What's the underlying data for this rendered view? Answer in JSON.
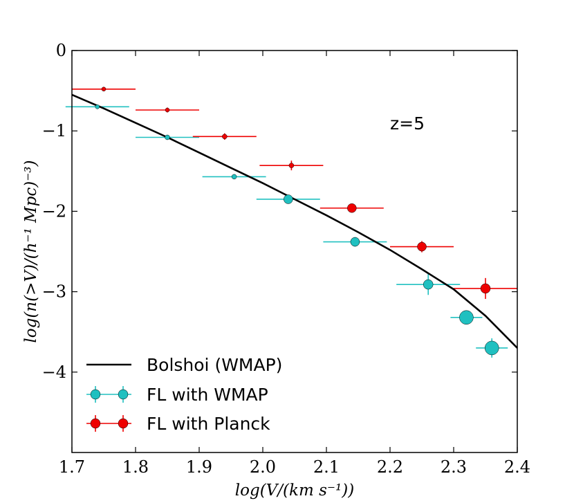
{
  "chart_data": {
    "type": "scatter",
    "title": "",
    "annotation": "z=5",
    "xlabel": "log(V/(km s⁻¹))",
    "ylabel": "log(n(>V)/(h⁻¹ Mpc)⁻³)",
    "xlim": [
      1.7,
      2.4
    ],
    "ylim": [
      -5,
      0
    ],
    "xticks": [
      {
        "value": 1.7,
        "label": "1.7"
      },
      {
        "value": 1.8,
        "label": "1.8"
      },
      {
        "value": 1.9,
        "label": "1.9"
      },
      {
        "value": 2.0,
        "label": "2.0"
      },
      {
        "value": 2.1,
        "label": "2.1"
      },
      {
        "value": 2.2,
        "label": "2.2"
      },
      {
        "value": 2.3,
        "label": "2.3"
      },
      {
        "value": 2.4,
        "label": "2.4"
      }
    ],
    "yticks": [
      {
        "value": 0,
        "label": "0"
      },
      {
        "value": -1,
        "label": "−1"
      },
      {
        "value": -2,
        "label": "−2"
      },
      {
        "value": -3,
        "label": "−3"
      },
      {
        "value": -4,
        "label": "−4"
      }
    ],
    "series": [
      {
        "name": "Bolshoi (WMAP)",
        "kind": "line",
        "color": "#000000",
        "x": [
          1.7,
          1.75,
          1.8,
          1.85,
          1.9,
          1.95,
          2.0,
          2.05,
          2.1,
          2.15,
          2.2,
          2.25,
          2.3,
          2.35,
          2.4
        ],
        "y": [
          -0.55,
          -0.72,
          -0.9,
          -1.08,
          -1.27,
          -1.46,
          -1.65,
          -1.85,
          -2.05,
          -2.26,
          -2.48,
          -2.72,
          -2.97,
          -3.3,
          -3.7
        ]
      },
      {
        "name": "FL with WMAP",
        "kind": "errorbar",
        "color": "#20c0c0",
        "points": [
          {
            "x": 1.74,
            "y": -0.7,
            "xerr": 0.05,
            "yerr": 0.02,
            "size": 3
          },
          {
            "x": 1.85,
            "y": -1.08,
            "xerr": 0.05,
            "yerr": 0.03,
            "size": 3.5
          },
          {
            "x": 1.955,
            "y": -1.57,
            "xerr": 0.05,
            "yerr": 0.03,
            "size": 3.5
          },
          {
            "x": 2.04,
            "y": -1.85,
            "xerr": 0.05,
            "yerr": 0.04,
            "size": 6.5
          },
          {
            "x": 2.145,
            "y": -2.38,
            "xerr": 0.05,
            "yerr": 0.06,
            "size": 6.5
          },
          {
            "x": 2.26,
            "y": -2.91,
            "xerr": 0.05,
            "yerr": 0.13,
            "size": 7
          },
          {
            "x": 2.32,
            "y": -3.32,
            "xerr": 0.025,
            "yerr": 0.06,
            "size": 10
          },
          {
            "x": 2.36,
            "y": -3.7,
            "xerr": 0.025,
            "yerr": 0.12,
            "size": 10
          }
        ]
      },
      {
        "name": "FL with Planck",
        "kind": "errorbar",
        "color": "#ee0000",
        "points": [
          {
            "x": 1.75,
            "y": -0.48,
            "xerr": 0.05,
            "yerr": 0.02,
            "size": 3
          },
          {
            "x": 1.85,
            "y": -0.74,
            "xerr": 0.05,
            "yerr": 0.03,
            "size": 3
          },
          {
            "x": 1.94,
            "y": -1.07,
            "xerr": 0.05,
            "yerr": 0.04,
            "size": 3.5
          },
          {
            "x": 2.045,
            "y": -1.43,
            "xerr": 0.05,
            "yerr": 0.06,
            "size": 3.5
          },
          {
            "x": 2.14,
            "y": -1.96,
            "xerr": 0.05,
            "yerr": 0.04,
            "size": 6.5
          },
          {
            "x": 2.25,
            "y": -2.44,
            "xerr": 0.05,
            "yerr": 0.07,
            "size": 6.5
          },
          {
            "x": 2.35,
            "y": -2.96,
            "xerr": 0.05,
            "yerr": 0.13,
            "size": 7
          }
        ]
      }
    ],
    "legend": {
      "placement": "lower-left",
      "entries": [
        {
          "label": "Bolshoi (WMAP)",
          "series": 0
        },
        {
          "label": "FL with WMAP",
          "series": 1
        },
        {
          "label": "FL with Planck",
          "series": 2
        }
      ]
    }
  }
}
